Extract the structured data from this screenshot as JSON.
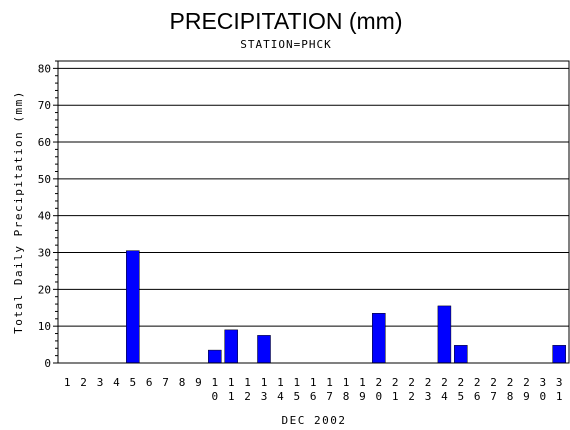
{
  "chart_data": {
    "type": "bar",
    "title": "PRECIPITATION (mm)",
    "subtitle": "STATION=PHCK",
    "xlabel": "DEC 2002",
    "ylabel": "Total Daily Precipitation (mm)",
    "ylim": [
      0,
      82
    ],
    "yticks": [
      0,
      10,
      20,
      30,
      40,
      50,
      60,
      70,
      80
    ],
    "grid": "horizontal",
    "bar_color": "#0000ff",
    "categories": [
      "1",
      "2",
      "3",
      "4",
      "5",
      "6",
      "7",
      "8",
      "9",
      "10",
      "11",
      "12",
      "13",
      "14",
      "15",
      "16",
      "17",
      "18",
      "19",
      "20",
      "21",
      "22",
      "23",
      "24",
      "25",
      "26",
      "27",
      "28",
      "29",
      "30",
      "31"
    ],
    "values": [
      0,
      0,
      0,
      0,
      30.5,
      0,
      0,
      0,
      0,
      3.5,
      9,
      0,
      7.5,
      0,
      0,
      0,
      0,
      0,
      0,
      13.5,
      0,
      0,
      0,
      15.5,
      4.8,
      0,
      0,
      0,
      0,
      0,
      4.8
    ]
  }
}
